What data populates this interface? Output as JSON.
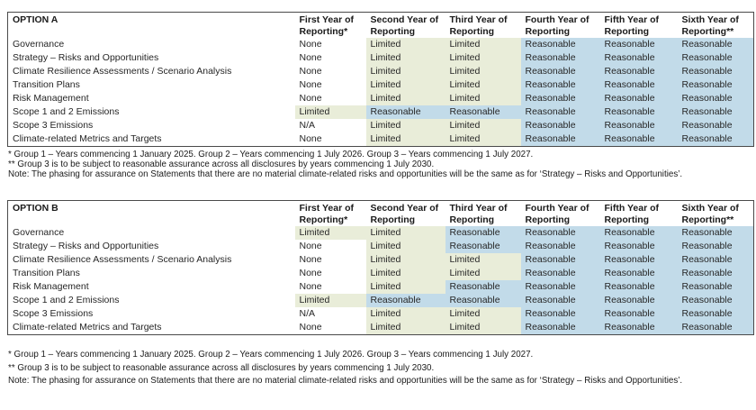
{
  "colors": {
    "limited_green": "#e9edd9",
    "reasonable_blue": "#c2dbe9",
    "none_white": "transparent"
  },
  "tables": [
    {
      "title": "OPTION A",
      "columns": [
        "First Year of\nReporting*",
        "Second Year of\nReporting",
        "Third Year of\nReporting",
        "Fourth Year of\nReporting",
        "Fifth Year of\nReporting",
        "Sixth Year of\nReporting**"
      ],
      "rows": [
        {
          "label": "Governance",
          "values": [
            "None",
            "Limited",
            "Limited",
            "Reasonable",
            "Reasonable",
            "Reasonable"
          ],
          "bgs": [
            "w",
            "g",
            "g",
            "b",
            "b",
            "b"
          ]
        },
        {
          "label": "Strategy – Risks and Opportunities",
          "values": [
            "None",
            "Limited",
            "Limited",
            "Reasonable",
            "Reasonable",
            "Reasonable"
          ],
          "bgs": [
            "w",
            "g",
            "g",
            "b",
            "b",
            "b"
          ]
        },
        {
          "label": "Climate Resilience Assessments / Scenario Analysis",
          "values": [
            "None",
            "Limited",
            "Limited",
            "Reasonable",
            "Reasonable",
            "Reasonable"
          ],
          "bgs": [
            "w",
            "g",
            "g",
            "b",
            "b",
            "b"
          ]
        },
        {
          "label": "Transition Plans",
          "values": [
            "None",
            "Limited",
            "Limited",
            "Reasonable",
            "Reasonable",
            "Reasonable"
          ],
          "bgs": [
            "w",
            "g",
            "g",
            "b",
            "b",
            "b"
          ]
        },
        {
          "label": "Risk Management",
          "values": [
            "None",
            "Limited",
            "Limited",
            "Reasonable",
            "Reasonable",
            "Reasonable"
          ],
          "bgs": [
            "w",
            "g",
            "g",
            "b",
            "b",
            "b"
          ]
        },
        {
          "label": "Scope 1 and 2 Emissions",
          "values": [
            "Limited",
            "Reasonable",
            "Reasonable",
            "Reasonable",
            "Reasonable",
            "Reasonable"
          ],
          "bgs": [
            "g",
            "b",
            "b",
            "b",
            "b",
            "b"
          ]
        },
        {
          "label": "Scope 3 Emissions",
          "values": [
            "N/A",
            "Limited",
            "Limited",
            "Reasonable",
            "Reasonable",
            "Reasonable"
          ],
          "bgs": [
            "w",
            "g",
            "g",
            "b",
            "b",
            "b"
          ]
        },
        {
          "label": "Climate-related Metrics and Targets",
          "values": [
            "None",
            "Limited",
            "Limited",
            "Reasonable",
            "Reasonable",
            "Reasonable"
          ],
          "bgs": [
            "w",
            "g",
            "g",
            "b",
            "b",
            "b"
          ]
        }
      ],
      "footnotes": [
        "* Group 1 – Years commencing 1 January 2025. Group 2 – Years commencing 1 July 2026. Group 3 – Years commencing 1 July 2027.",
        "** Group 3 is to be subject to reasonable assurance across all disclosures by years commencing 1 July 2030.",
        "Note: The phasing for assurance on Statements that there are no material climate-related risks and opportunities will be the same as for ‘Strategy – Risks and Opportunities’."
      ]
    },
    {
      "title": "OPTION B",
      "columns": [
        "First Year of\nReporting*",
        "Second Year of\nReporting",
        "Third Year of\nReporting",
        "Fourth Year of\nReporting",
        "Fifth Year of\nReporting",
        "Sixth Year of\nReporting**"
      ],
      "rows": [
        {
          "label": "Governance",
          "values": [
            "Limited",
            "Limited",
            "Reasonable",
            "Reasonable",
            "Reasonable",
            "Reasonable"
          ],
          "bgs": [
            "g",
            "g",
            "b",
            "b",
            "b",
            "b"
          ]
        },
        {
          "label": "Strategy – Risks and Opportunities",
          "values": [
            "None",
            "Limited",
            "Reasonable",
            "Reasonable",
            "Reasonable",
            "Reasonable"
          ],
          "bgs": [
            "w",
            "g",
            "b",
            "b",
            "b",
            "b"
          ]
        },
        {
          "label": "Climate Resilience Assessments / Scenario Analysis",
          "values": [
            "None",
            "Limited",
            "Limited",
            "Reasonable",
            "Reasonable",
            "Reasonable"
          ],
          "bgs": [
            "w",
            "g",
            "g",
            "b",
            "b",
            "b"
          ]
        },
        {
          "label": "Transition Plans",
          "values": [
            "None",
            "Limited",
            "Limited",
            "Reasonable",
            "Reasonable",
            "Reasonable"
          ],
          "bgs": [
            "w",
            "g",
            "g",
            "b",
            "b",
            "b"
          ]
        },
        {
          "label": "Risk Management",
          "values": [
            "None",
            "Limited",
            "Reasonable",
            "Reasonable",
            "Reasonable",
            "Reasonable"
          ],
          "bgs": [
            "w",
            "g",
            "b",
            "b",
            "b",
            "b"
          ]
        },
        {
          "label": "Scope 1 and 2 Emissions",
          "values": [
            "Limited",
            "Reasonable",
            "Reasonable",
            "Reasonable",
            "Reasonable",
            "Reasonable"
          ],
          "bgs": [
            "g",
            "b",
            "b",
            "b",
            "b",
            "b"
          ]
        },
        {
          "label": "Scope 3 Emissions",
          "values": [
            "N/A",
            "Limited",
            "Limited",
            "Reasonable",
            "Reasonable",
            "Reasonable"
          ],
          "bgs": [
            "w",
            "g",
            "g",
            "b",
            "b",
            "b"
          ]
        },
        {
          "label": "Climate-related Metrics and Targets",
          "values": [
            "None",
            "Limited",
            "Limited",
            "Reasonable",
            "Reasonable",
            "Reasonable"
          ],
          "bgs": [
            "w",
            "g",
            "g",
            "b",
            "b",
            "b"
          ]
        }
      ],
      "footnotes": [
        "* Group 1 – Years commencing 1 January 2025. Group 2 – Years commencing 1 July 2026. Group 3 – Years commencing 1 July 2027.",
        "** Group 3 is to be subject to reasonable assurance across all disclosures by years commencing 1 July 2030.",
        "Note: The phasing for assurance on Statements that there are no material climate-related risks and opportunities will be the same as for ‘Strategy – Risks and Opportunities’."
      ]
    }
  ]
}
